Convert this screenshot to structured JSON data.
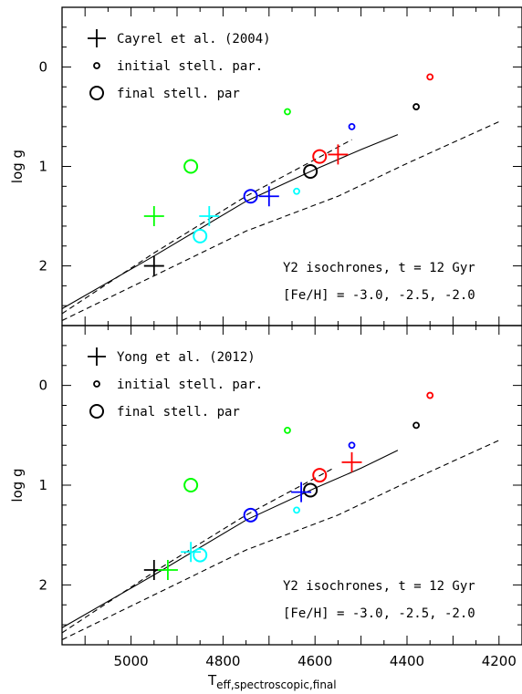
{
  "chart_data": [
    {
      "type": "scatter",
      "panel": "top",
      "xlabel": "T",
      "xlabel_sub": "eff,spectroscopic,final",
      "ylabel": "log g",
      "xlim": [
        5150,
        4150
      ],
      "ylim": [
        2.6,
        -0.6
      ],
      "x_ticks": [
        5000,
        4800,
        4600,
        4400,
        4200
      ],
      "y_ticks": [
        0,
        1,
        2
      ],
      "legend": [
        {
          "marker": "plus",
          "label": "Cayrel et al. (2004)"
        },
        {
          "marker": "small-circle",
          "label": "initial stell. par."
        },
        {
          "marker": "large-circle",
          "label": "final stell. par"
        }
      ],
      "annotations": [
        "Y2 isochrones, t = 12 Gyr",
        "[Fe/H] = -3.0, -2.5, -2.0"
      ],
      "series": [
        {
          "color": "#000000",
          "initial": [
            4380,
            0.4
          ],
          "final": [
            4610,
            1.05
          ],
          "literature": [
            4950,
            2.0
          ]
        },
        {
          "color": "#ff0000",
          "initial": [
            4350,
            0.1
          ],
          "final": [
            4590,
            0.9
          ],
          "literature": [
            4550,
            0.88
          ]
        },
        {
          "color": "#00ff00",
          "initial": [
            4660,
            0.45
          ],
          "final": [
            4870,
            1.0
          ],
          "literature": [
            4950,
            1.5
          ]
        },
        {
          "color": "#0000ff",
          "initial": [
            4520,
            0.6
          ],
          "final": [
            4740,
            1.3
          ],
          "literature": [
            4700,
            1.3
          ]
        },
        {
          "color": "#00ffff",
          "initial": [
            4640,
            1.25
          ],
          "final": [
            4850,
            1.7
          ],
          "literature": [
            4830,
            1.5
          ]
        }
      ],
      "isochrones": [
        {
          "style": "solid",
          "points": [
            [
              5150,
              2.43
            ],
            [
              4950,
              1.9
            ],
            [
              4750,
              1.35
            ],
            [
              4600,
              1.03
            ],
            [
              4500,
              0.83
            ],
            [
              4420,
              0.68
            ]
          ]
        },
        {
          "style": "dashed",
          "points": [
            [
              5150,
              2.48
            ],
            [
              4950,
              1.87
            ],
            [
              4750,
              1.3
            ],
            [
              4600,
              0.93
            ],
            [
              4520,
              0.73
            ]
          ]
        },
        {
          "style": "dashed",
          "points": [
            [
              5150,
              2.55
            ],
            [
              4950,
              2.1
            ],
            [
              4750,
              1.65
            ],
            [
              4550,
              1.3
            ],
            [
              4400,
              0.97
            ],
            [
              4200,
              0.55
            ]
          ]
        }
      ]
    },
    {
      "type": "scatter",
      "panel": "bottom",
      "xlabel": "T",
      "xlabel_sub": "eff,spectroscopic,final",
      "ylabel": "log g",
      "xlim": [
        5150,
        4150
      ],
      "ylim": [
        2.6,
        -0.6
      ],
      "x_ticks": [
        5000,
        4800,
        4600,
        4400,
        4200
      ],
      "y_ticks": [
        0,
        1,
        2
      ],
      "legend": [
        {
          "marker": "plus",
          "label": "Yong et al. (2012)"
        },
        {
          "marker": "small-circle",
          "label": "initial stell. par."
        },
        {
          "marker": "large-circle",
          "label": "final stell. par"
        }
      ],
      "annotations": [
        "Y2 isochrones, t = 12 Gyr",
        "[Fe/H] = -3.0, -2.5, -2.0"
      ],
      "series": [
        {
          "color": "#000000",
          "initial": [
            4380,
            0.4
          ],
          "final": [
            4610,
            1.05
          ],
          "literature": [
            4950,
            1.85
          ]
        },
        {
          "color": "#ff0000",
          "initial": [
            4350,
            0.1
          ],
          "final": [
            4590,
            0.9
          ],
          "literature": [
            4520,
            0.77
          ]
        },
        {
          "color": "#00ff00",
          "initial": [
            4660,
            0.45
          ],
          "final": [
            4870,
            1.0
          ],
          "literature": [
            4920,
            1.85
          ]
        },
        {
          "color": "#0000ff",
          "initial": [
            4520,
            0.6
          ],
          "final": [
            4740,
            1.3
          ],
          "literature": [
            4630,
            1.07
          ]
        },
        {
          "color": "#00ffff",
          "initial": [
            4640,
            1.25
          ],
          "final": [
            4850,
            1.7
          ],
          "literature": [
            4870,
            1.67
          ]
        }
      ],
      "isochrones": [
        {
          "style": "solid",
          "points": [
            [
              5150,
              2.43
            ],
            [
              4950,
              1.9
            ],
            [
              4750,
              1.35
            ],
            [
              4600,
              1.03
            ],
            [
              4500,
              0.83
            ],
            [
              4420,
              0.65
            ]
          ]
        },
        {
          "style": "dashed",
          "points": [
            [
              5150,
              2.48
            ],
            [
              4950,
              1.87
            ],
            [
              4750,
              1.3
            ],
            [
              4600,
              0.93
            ],
            [
              4560,
              0.83
            ]
          ]
        },
        {
          "style": "dashed",
          "points": [
            [
              5150,
              2.55
            ],
            [
              4950,
              2.1
            ],
            [
              4750,
              1.65
            ],
            [
              4550,
              1.3
            ],
            [
              4400,
              0.97
            ],
            [
              4200,
              0.55
            ]
          ]
        }
      ]
    }
  ]
}
